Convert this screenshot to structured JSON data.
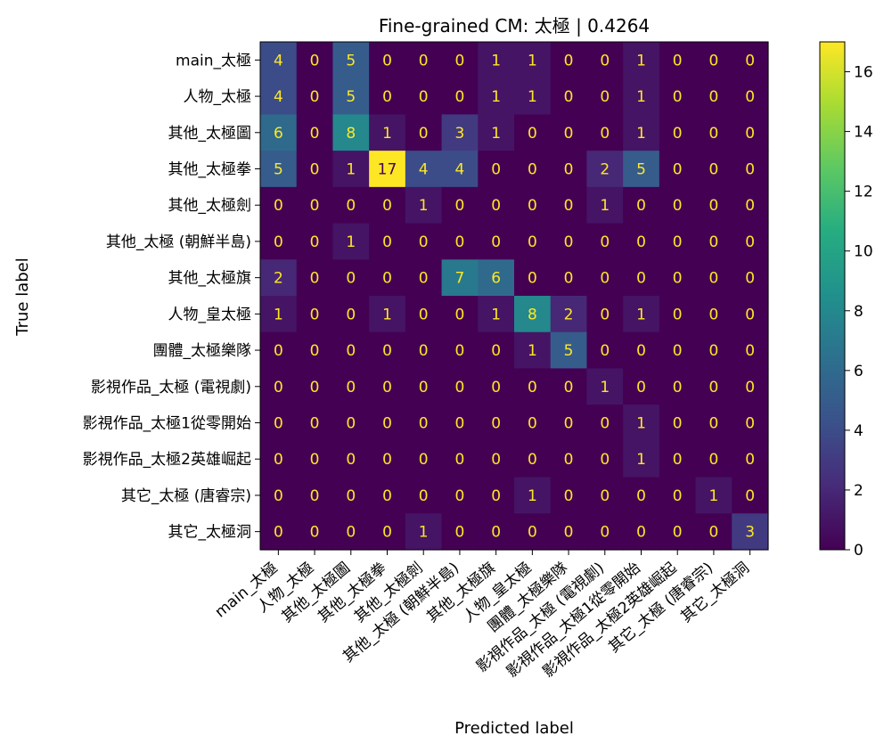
{
  "chart_data": {
    "type": "heatmap",
    "title": "Fine-grained CM: 太極 | 0.4264",
    "xlabel": "Predicted label",
    "ylabel": "True label",
    "categories": [
      "main_太極",
      "人物_太極",
      "其他_太極圖",
      "其他_太極拳",
      "其他_太極劍",
      "其他_太極 (朝鮮半島)",
      "其他_太極旗",
      "人物_皇太極",
      "團體_太極樂隊",
      "影視作品_太極 (電視劇)",
      "影視作品_太極1從零開始",
      "影視作品_太極2英雄崛起",
      "其它_太極 (唐睿宗)",
      "其它_太極洞"
    ],
    "matrix": [
      [
        4,
        0,
        5,
        0,
        0,
        0,
        1,
        1,
        0,
        0,
        1,
        0,
        0,
        0
      ],
      [
        4,
        0,
        5,
        0,
        0,
        0,
        1,
        1,
        0,
        0,
        1,
        0,
        0,
        0
      ],
      [
        6,
        0,
        8,
        1,
        0,
        3,
        1,
        0,
        0,
        0,
        1,
        0,
        0,
        0
      ],
      [
        5,
        0,
        1,
        17,
        4,
        4,
        0,
        0,
        0,
        2,
        5,
        0,
        0,
        0
      ],
      [
        0,
        0,
        0,
        0,
        1,
        0,
        0,
        0,
        0,
        1,
        0,
        0,
        0,
        0
      ],
      [
        0,
        0,
        1,
        0,
        0,
        0,
        0,
        0,
        0,
        0,
        0,
        0,
        0,
        0
      ],
      [
        2,
        0,
        0,
        0,
        0,
        7,
        6,
        0,
        0,
        0,
        0,
        0,
        0,
        0
      ],
      [
        1,
        0,
        0,
        1,
        0,
        0,
        1,
        8,
        2,
        0,
        1,
        0,
        0,
        0
      ],
      [
        0,
        0,
        0,
        0,
        0,
        0,
        0,
        1,
        5,
        0,
        0,
        0,
        0,
        0
      ],
      [
        0,
        0,
        0,
        0,
        0,
        0,
        0,
        0,
        0,
        1,
        0,
        0,
        0,
        0
      ],
      [
        0,
        0,
        0,
        0,
        0,
        0,
        0,
        0,
        0,
        0,
        1,
        0,
        0,
        0
      ],
      [
        0,
        0,
        0,
        0,
        0,
        0,
        0,
        0,
        0,
        0,
        1,
        0,
        0,
        0
      ],
      [
        0,
        0,
        0,
        0,
        0,
        0,
        0,
        1,
        0,
        0,
        0,
        0,
        1,
        0
      ],
      [
        0,
        0,
        0,
        0,
        1,
        0,
        0,
        0,
        0,
        0,
        0,
        0,
        0,
        3
      ]
    ],
    "colorbar": {
      "range": [
        0,
        17
      ],
      "ticks": [
        0,
        2,
        4,
        6,
        8,
        10,
        12,
        14,
        16
      ],
      "colormap": "viridis"
    },
    "grid": false
  }
}
